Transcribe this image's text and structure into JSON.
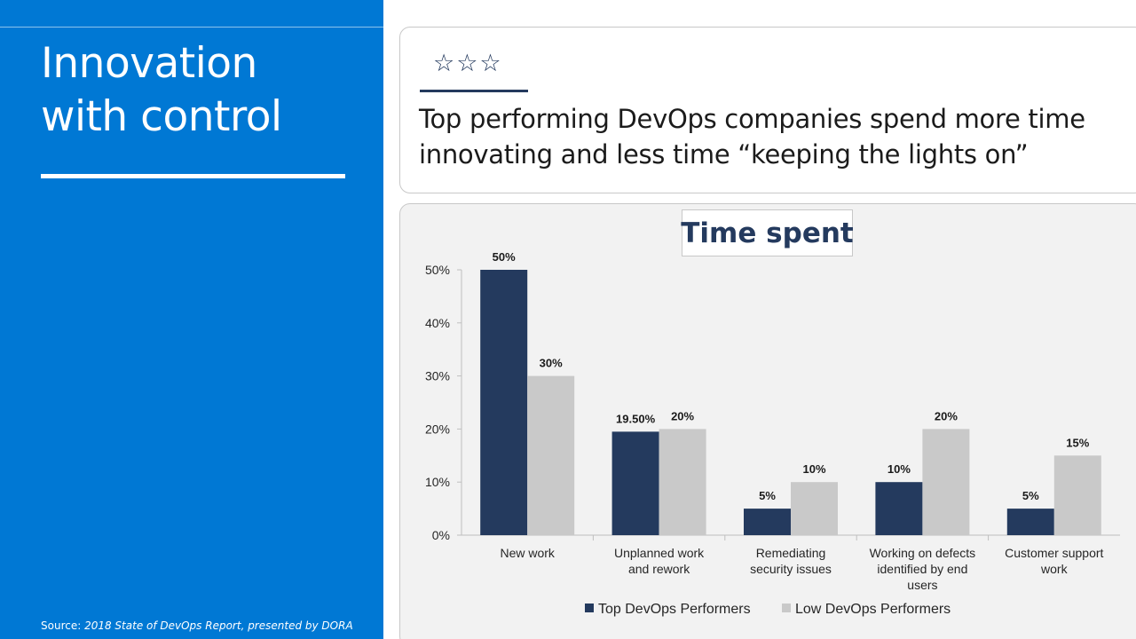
{
  "panel": {
    "title_line1": "Innovation",
    "title_line2": "with control",
    "source_prefix": "Source: ",
    "source_italic": "2018 State of DevOps Report, presented by DORA"
  },
  "header": {
    "stars": "☆☆☆",
    "headline_line1": "Top performing DevOps companies spend more time",
    "headline_line2": "innovating and less time “keeping the lights on”"
  },
  "colors": {
    "accent": "#0078d4",
    "navy": "#243a5e",
    "gray": "#c9c9c9"
  },
  "chart_data": {
    "type": "bar",
    "title": "Time spent",
    "categories": [
      [
        "New work"
      ],
      [
        "Unplanned work",
        "and rework"
      ],
      [
        "Remediating",
        "security issues"
      ],
      [
        "Working on defects",
        "identified by end",
        "users"
      ],
      [
        "Customer support",
        "work"
      ]
    ],
    "series": [
      {
        "name": "Top DevOps Performers",
        "color": "#243a5e",
        "values": [
          50,
          19.5,
          5,
          10,
          5
        ],
        "labels": [
          "50%",
          "19.50%",
          "5%",
          "10%",
          "5%"
        ]
      },
      {
        "name": "Low DevOps Performers",
        "color": "#c9c9c9",
        "values": [
          30,
          20,
          10,
          20,
          15
        ],
        "labels": [
          "30%",
          "20%",
          "10%",
          "20%",
          "15%"
        ]
      }
    ],
    "yticks": [
      "0%",
      "10%",
      "20%",
      "30%",
      "40%",
      "50%"
    ],
    "ylim": [
      0,
      50
    ],
    "legend_position": "bottom"
  }
}
